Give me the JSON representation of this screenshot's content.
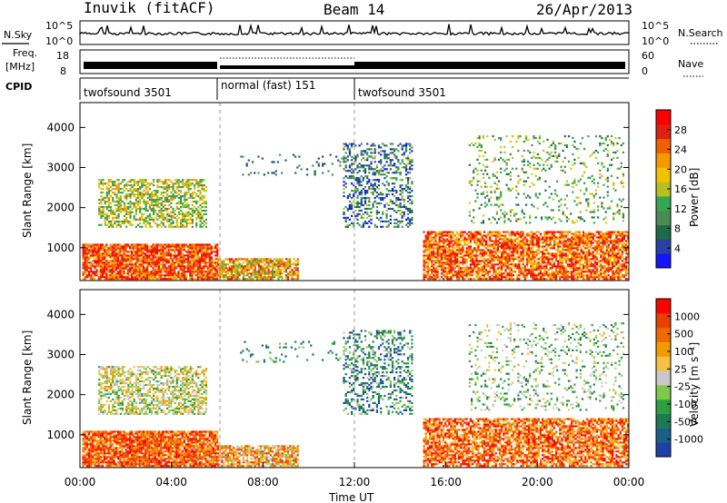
{
  "header": {
    "radar": "Inuvik (fitACF)",
    "beam": "Beam 14",
    "date": "26/Apr/2013"
  },
  "noise_panel": {
    "left_label": "N.Sky",
    "right_label": "N.Search",
    "tick_high": "10^5",
    "tick_low": "10^0",
    "right_tick_high": "10^5",
    "right_tick_low": "10^0"
  },
  "freq_panel": {
    "left_label_1": "Freq.",
    "left_label_2": "[MHz]",
    "tick_high": "18",
    "tick_low": "8",
    "right_label": "Nave",
    "right_tick_high": "60",
    "right_tick_low": "0"
  },
  "cpid_panel": {
    "label": "CPID",
    "segments": [
      {
        "name": "twofsound 3501",
        "start_hr": 0,
        "end_hr": 6
      },
      {
        "name": "normal (fast) 151",
        "start_hr": 6,
        "end_hr": 12
      },
      {
        "name": "twofsound 3501",
        "start_hr": 12,
        "end_hr": 24
      }
    ]
  },
  "chart_data": [
    {
      "type": "heatmap",
      "title": "Power",
      "ylabel": "Slant Range [km]",
      "yticks": [
        1000,
        2000,
        3000,
        4000
      ],
      "ylim": [
        180,
        4620
      ],
      "xlim_hours": [
        0,
        24
      ],
      "colorbar": {
        "label": "Power [dB]",
        "ticks": [
          4,
          8,
          12,
          16,
          20,
          24,
          28
        ],
        "range": [
          0,
          30
        ],
        "colors": [
          "#1414ff",
          "#2a3fa8",
          "#1f6a4a",
          "#4b8b52",
          "#33a852",
          "#b6c020",
          "#f2c200",
          "#f39a00",
          "#f06000",
          "#e02010",
          "#ff0000"
        ]
      }
    },
    {
      "type": "heatmap",
      "title": "Velocity",
      "ylabel": "Slant Range [km]",
      "yticks": [
        1000,
        2000,
        3000,
        4000
      ],
      "ylim": [
        180,
        4620
      ],
      "xlim_hours": [
        0,
        24
      ],
      "xlabel": "Time UT",
      "xticks": [
        "00:00",
        "04:00",
        "08:00",
        "12:00",
        "16:00",
        "20:00",
        "00:00"
      ],
      "colorbar": {
        "label": "Velocity [m s⁻¹]",
        "ticks": [
          "1000",
          "500",
          "100",
          "25",
          "-25",
          "-100",
          "-500",
          "-1000"
        ],
        "colors": [
          "#1f3fa8",
          "#1b5e8a",
          "#1e7a55",
          "#2f9e43",
          "#7ec84a",
          "#c8c8c8",
          "#f6c040",
          "#f39a00",
          "#ef6a00",
          "#e84000",
          "#ff0000"
        ]
      }
    }
  ]
}
